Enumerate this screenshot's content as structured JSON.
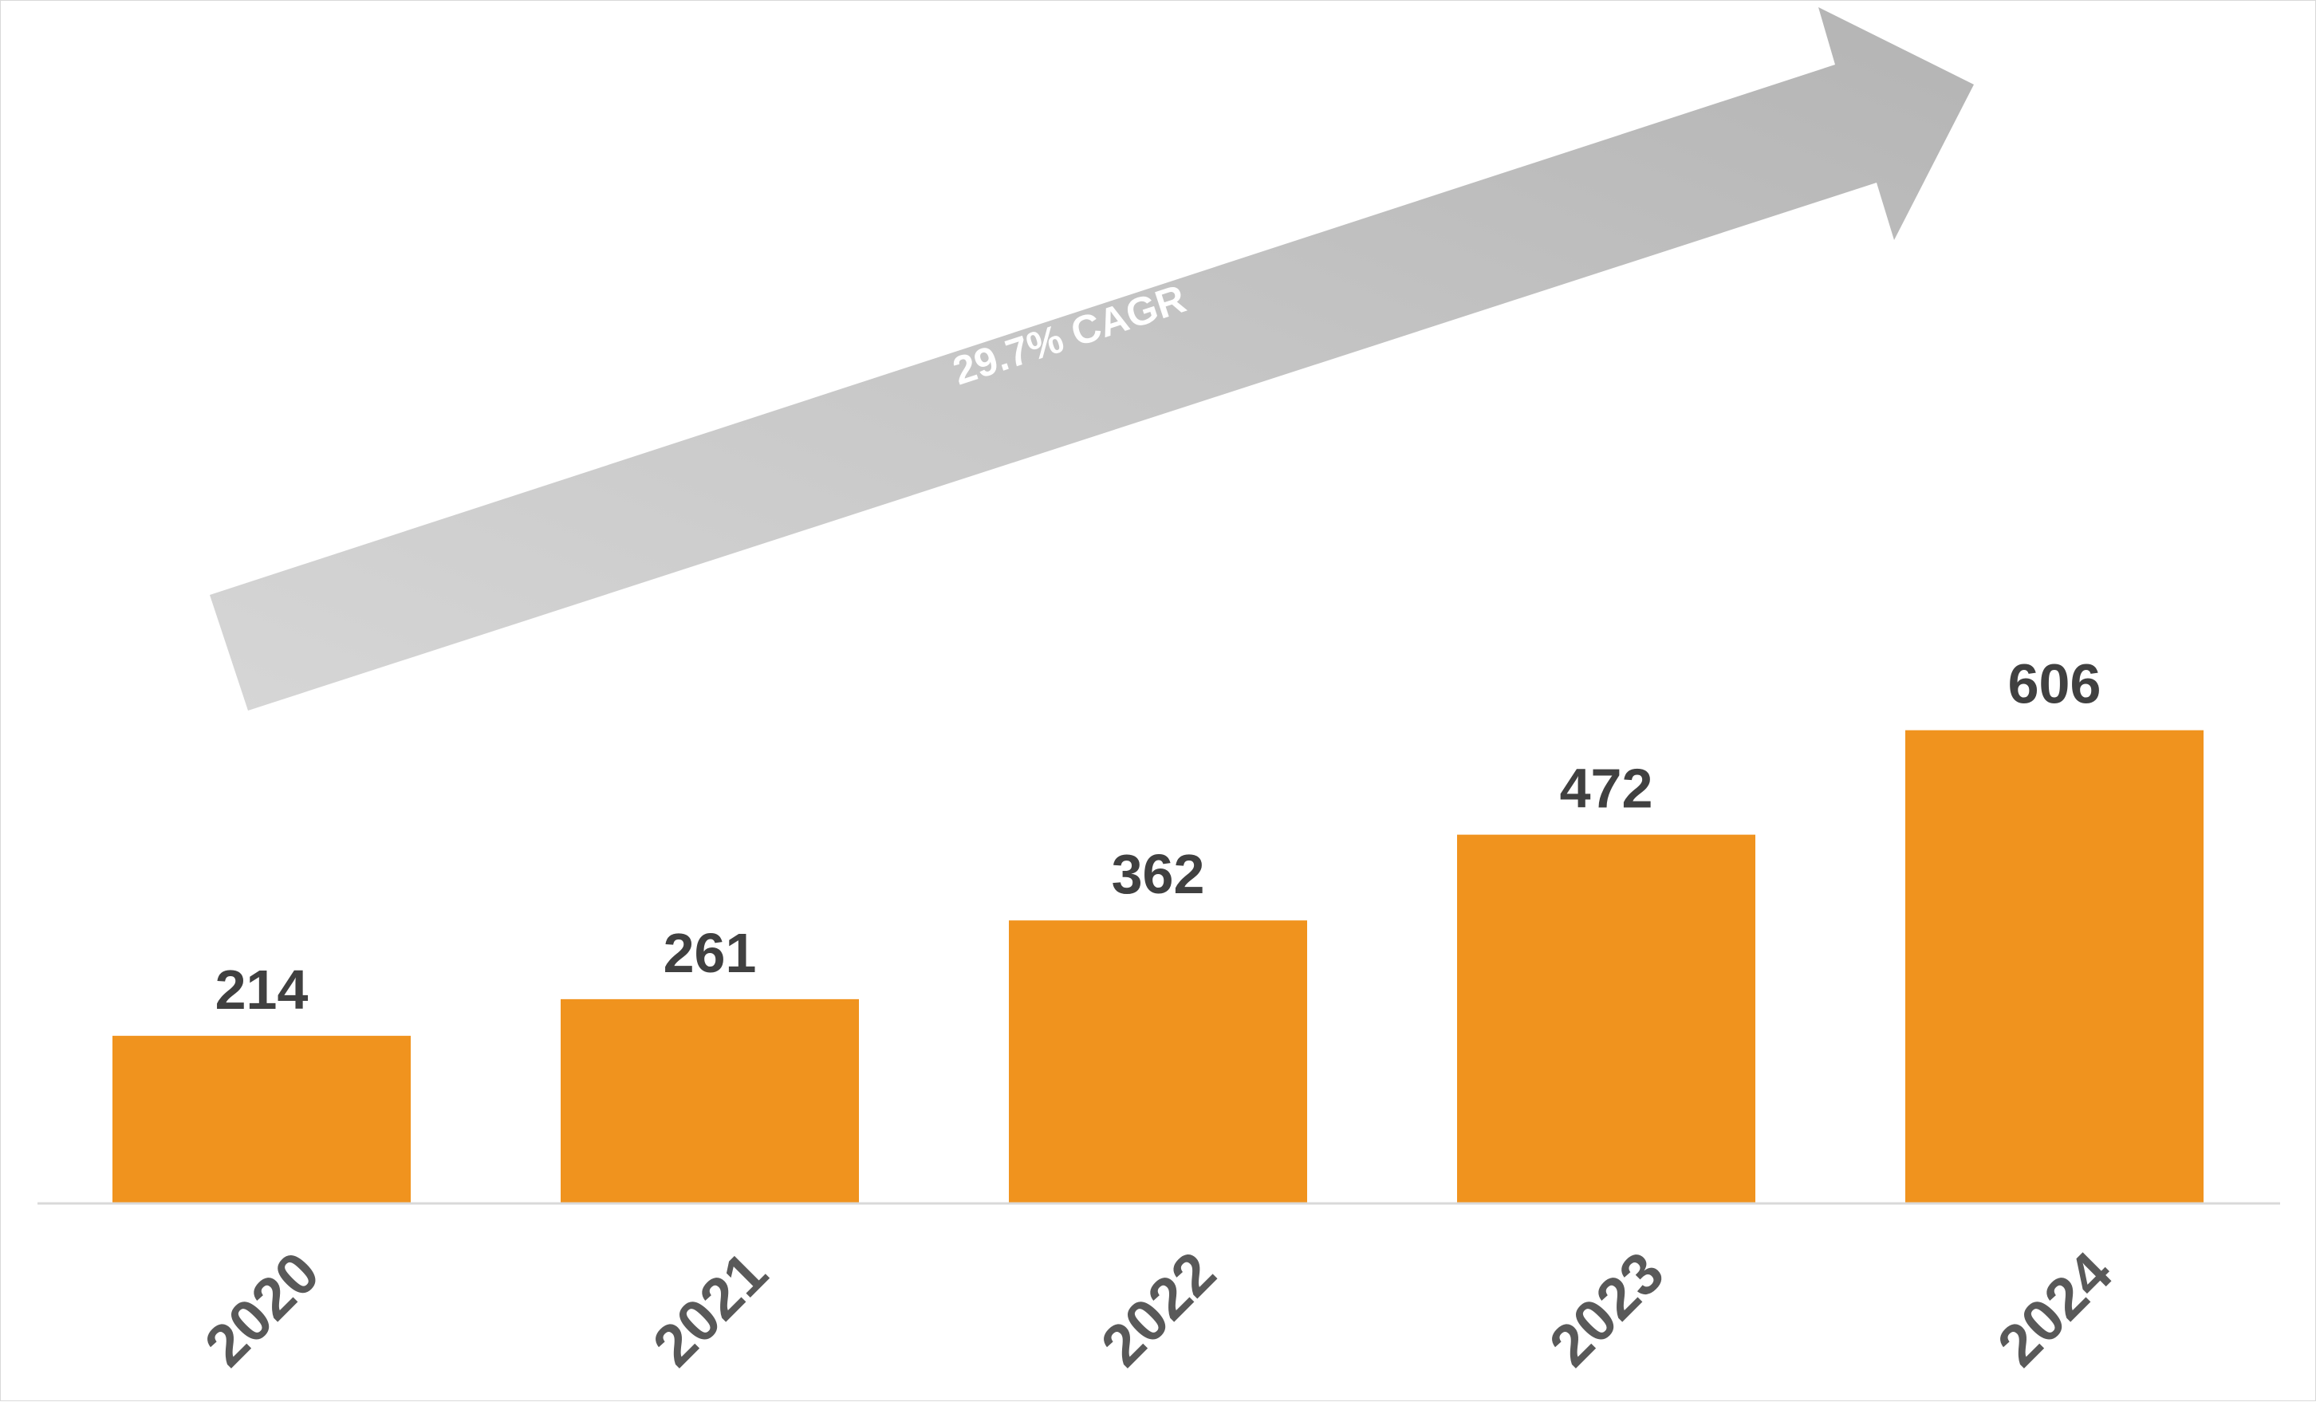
{
  "chart_data": {
    "type": "bar",
    "categories": [
      "2020",
      "2021",
      "2022",
      "2023",
      "2024"
    ],
    "values": [
      214,
      261,
      362,
      472,
      606
    ],
    "data_labels": [
      "214",
      "261",
      "362",
      "472",
      "606"
    ],
    "title": "",
    "xlabel": "",
    "ylabel": "",
    "ylim": [
      0,
      700
    ],
    "grid": false,
    "legend": "none",
    "bar_color": "#F0931E",
    "annotation": {
      "text": "29.7% CAGR",
      "kind": "arrow",
      "color": "#C0C0C0"
    }
  }
}
